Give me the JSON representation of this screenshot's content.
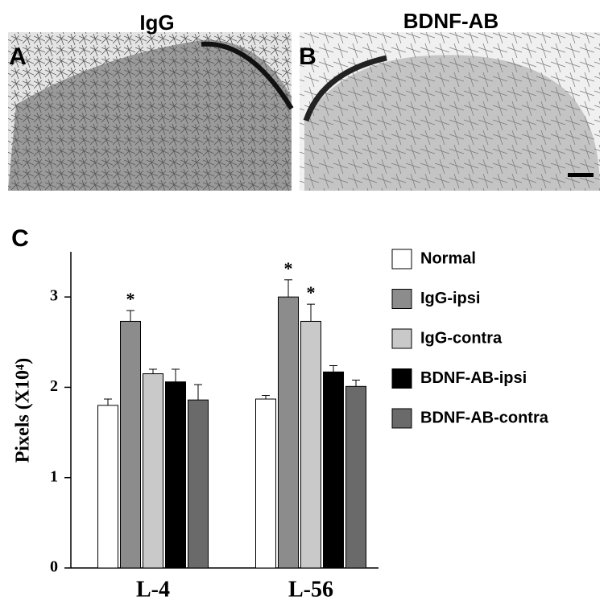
{
  "panels": [
    {
      "label": "A",
      "title": "IgG"
    },
    {
      "label": "B",
      "title": "BDNF-AB"
    }
  ],
  "chart_data": {
    "type": "bar",
    "panel_label": "C",
    "y_label": "Pixels (X10⁴)",
    "categories": [
      "L-4",
      "L-56"
    ],
    "series": [
      {
        "name": "Normal",
        "color": "#ffffff",
        "values": [
          1.8,
          1.87
        ],
        "errors": [
          0.07,
          0.04
        ]
      },
      {
        "name": "IgG-ipsi",
        "color": "#8c8c8c",
        "values": [
          2.73,
          3.0
        ],
        "errors": [
          0.12,
          0.19
        ]
      },
      {
        "name": "IgG-contra",
        "color": "#c9c9c9",
        "values": [
          2.15,
          2.73
        ],
        "errors": [
          0.05,
          0.19
        ]
      },
      {
        "name": "BDNF-AB-ipsi",
        "color": "#000000",
        "values": [
          2.06,
          2.17
        ],
        "errors": [
          0.14,
          0.07
        ]
      },
      {
        "name": "BDNF-AB-contra",
        "color": "#6a6a6a",
        "values": [
          1.86,
          2.01
        ],
        "errors": [
          0.17,
          0.07
        ]
      }
    ],
    "annotations": [
      {
        "text": "*",
        "series": 1,
        "category": 0
      },
      {
        "text": "*",
        "series": 1,
        "category": 1
      },
      {
        "text": "*",
        "series": 2,
        "category": 1
      }
    ],
    "ylim": [
      0,
      3.5
    ],
    "yticks": [
      0,
      1,
      2,
      3
    ],
    "grid": false,
    "legend": "right"
  }
}
